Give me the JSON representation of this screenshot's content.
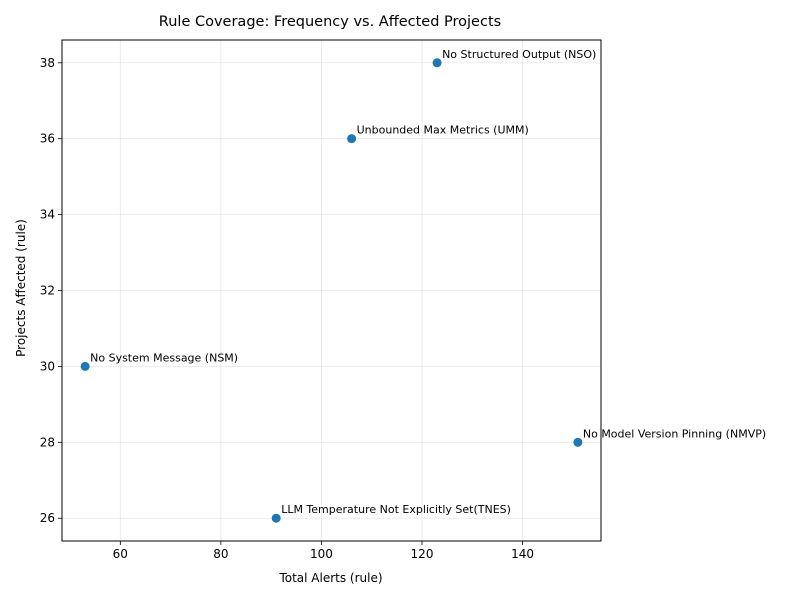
{
  "chart_data": {
    "type": "scatter",
    "title": "Rule Coverage: Frequency vs. Affected Projects",
    "xlabel": "Total Alerts (rule)",
    "ylabel": "Projects Affected (rule)",
    "xlim": [
      48.4,
      155.6
    ],
    "ylim": [
      25.4,
      38.6
    ],
    "xticks": [
      60,
      80,
      100,
      120,
      140
    ],
    "yticks": [
      26,
      28,
      30,
      32,
      34,
      36,
      38
    ],
    "grid": true,
    "marker_color": "#1f77b4",
    "points": [
      {
        "x": 123,
        "y": 38,
        "label": "No Structured Output (NSO)"
      },
      {
        "x": 106,
        "y": 36,
        "label": "Unbounded Max Metrics (UMM)"
      },
      {
        "x": 53,
        "y": 30,
        "label": "No System Message (NSM)"
      },
      {
        "x": 151,
        "y": 28,
        "label": "No Model Version Pinning (NMVP)"
      },
      {
        "x": 91,
        "y": 26,
        "label": "LLM Temperature Not Explicitly Set(TNES)"
      }
    ]
  }
}
